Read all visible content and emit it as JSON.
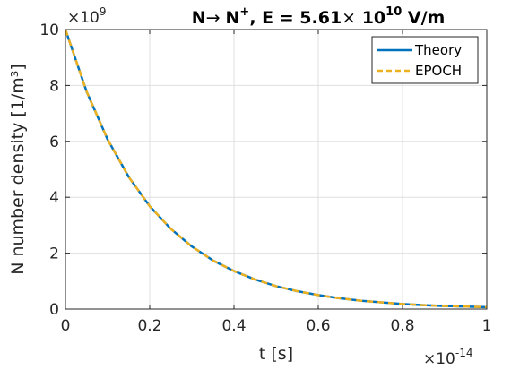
{
  "chart_data": {
    "type": "line",
    "title": {
      "prefix": "N",
      "arrow": "→",
      "ion": "N",
      "ion_charge": "+",
      "mid": ", E = 5.61",
      "times": "×",
      "base": " 10",
      "exponent": "10",
      "unit": " V/m"
    },
    "xlabel": "t [s]",
    "ylabel": "N number density [1/m³]",
    "x_multiplier": {
      "prefix": "×10",
      "exponent": "-14"
    },
    "y_multiplier": {
      "prefix": "×10",
      "exponent": "9"
    },
    "xlim": [
      0,
      1
    ],
    "ylim": [
      0,
      10
    ],
    "x_ticks": [
      0,
      0.2,
      0.4,
      0.6,
      0.8,
      1
    ],
    "x_tick_labels": [
      "0",
      "0.2",
      "0.4",
      "0.6",
      "0.8",
      "1"
    ],
    "y_ticks": [
      0,
      2,
      4,
      6,
      8,
      10
    ],
    "y_tick_labels": [
      "0",
      "2",
      "4",
      "6",
      "8",
      "10"
    ],
    "grid": true,
    "legend_position": "top-right",
    "x": [
      0,
      0.05,
      0.1,
      0.15,
      0.2,
      0.25,
      0.3,
      0.35,
      0.4,
      0.45,
      0.5,
      0.55,
      0.6,
      0.65,
      0.7,
      0.75,
      0.8,
      0.85,
      0.9,
      0.95,
      1.0
    ],
    "series": [
      {
        "name": "Theory",
        "color": "#0072BD",
        "style": "solid",
        "values": [
          10,
          7.79,
          6.07,
          4.73,
          3.68,
          2.87,
          2.24,
          1.74,
          1.36,
          1.06,
          0.82,
          0.64,
          0.5,
          0.39,
          0.3,
          0.24,
          0.18,
          0.14,
          0.11,
          0.09,
          0.07
        ]
      },
      {
        "name": "EPOCH",
        "color": "#EDB120",
        "style": "dashed",
        "values": [
          10,
          7.79,
          6.07,
          4.73,
          3.68,
          2.87,
          2.24,
          1.74,
          1.36,
          1.06,
          0.82,
          0.64,
          0.5,
          0.39,
          0.3,
          0.24,
          0.18,
          0.14,
          0.11,
          0.09,
          0.07
        ]
      }
    ]
  }
}
